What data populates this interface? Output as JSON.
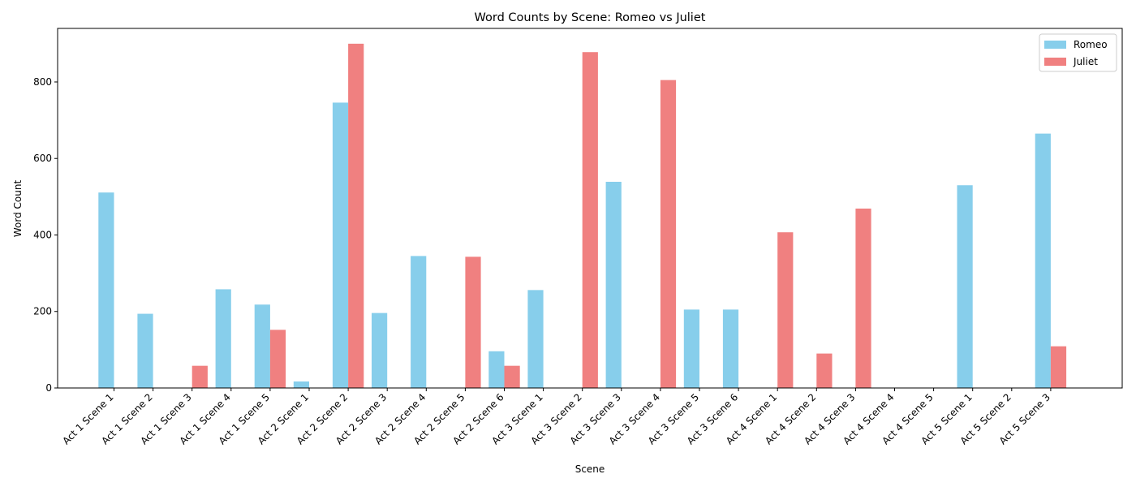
{
  "chart_data": {
    "type": "bar",
    "title": "Word Counts by Scene: Romeo vs Juliet",
    "xlabel": "Scene",
    "ylabel": "Word Count",
    "ylim": [
      0,
      940
    ],
    "yticks": [
      0,
      200,
      400,
      600,
      800
    ],
    "grid": false,
    "legend_position": "top-right",
    "categories": [
      "Act 1 Scene 1",
      "Act 1 Scene 2",
      "Act 1 Scene 3",
      "Act 1 Scene 4",
      "Act 1 Scene 5",
      "Act 2 Scene 1",
      "Act 2 Scene 2",
      "Act 2 Scene 3",
      "Act 2 Scene 4",
      "Act 2 Scene 5",
      "Act 2 Scene 6",
      "Act 3 Scene 1",
      "Act 3 Scene 2",
      "Act 3 Scene 3",
      "Act 3 Scene 4",
      "Act 3 Scene 5",
      "Act 3 Scene 6",
      "Act 4 Scene 1",
      "Act 4 Scene 2",
      "Act 4 Scene 3",
      "Act 4 Scene 4",
      "Act 4 Scene 5",
      "Act 5 Scene 1",
      "Act 5 Scene 2",
      "Act 5 Scene 3"
    ],
    "series": [
      {
        "name": "Romeo",
        "color": "#87ceeb",
        "values": [
          511,
          194,
          0,
          258,
          218,
          17,
          746,
          196,
          345,
          0,
          96,
          256,
          0,
          539,
          0,
          205,
          205,
          0,
          0,
          0,
          0,
          0,
          530,
          0,
          665
        ]
      },
      {
        "name": "Juliet",
        "color": "#f08080",
        "values": [
          0,
          0,
          58,
          0,
          152,
          0,
          900,
          0,
          0,
          343,
          58,
          0,
          878,
          0,
          805,
          0,
          0,
          407,
          90,
          469,
          0,
          0,
          0,
          0,
          109
        ]
      }
    ]
  }
}
